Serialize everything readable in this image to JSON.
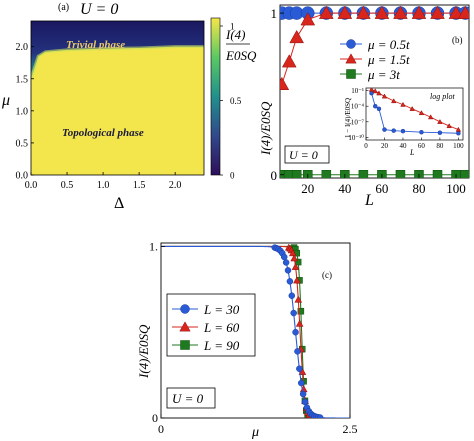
{
  "figure": {
    "panel_a": {
      "panel_label": "(a)",
      "title": "U = 0",
      "xlabel": "Δ",
      "ylabel": "μ",
      "x_ticks": [
        "0.0",
        "0.5",
        "1.0",
        "1.5",
        "2.0"
      ],
      "y_ticks": [
        "0.0",
        "0.5",
        "1.0",
        "1.5",
        "2.0"
      ],
      "colorbar_label_num": "I(4)",
      "colorbar_label_den": "E0SQ",
      "colorbar_ticks": [
        "0",
        "0.5",
        "1"
      ],
      "annotation_top": "Trivial phase",
      "annotation_bottom": "Topological phase"
    },
    "panel_b": {
      "panel_label": "(b)",
      "box_label": "U = 0",
      "xlabel": "L",
      "ylabel": "I(4)/E0SQ",
      "x_ticks": [
        "20",
        "40",
        "60",
        "80",
        "100"
      ],
      "y_ticks": [
        "0",
        "1"
      ],
      "legend": [
        "μ = 0.5t",
        "μ = 1.5t",
        "μ = 3t"
      ],
      "inset_label": "log plot",
      "inset_ylabel": "1 − I(4)/E0SQ",
      "inset_x_ticks": [
        "0",
        "20",
        "40",
        "60",
        "80",
        "100"
      ],
      "inset_y_ticks": [
        "10⁻¹",
        "10⁻⁴",
        "10⁻⁷",
        "10⁻¹⁰"
      ],
      "inset_xlabel": "L"
    },
    "panel_c": {
      "panel_label": "(c)",
      "box_label": "U = 0",
      "xlabel": "μ",
      "ylabel": "I(4)/E0SQ",
      "x_ticks": [
        "0",
        "2.5"
      ],
      "y_ticks": [
        "0",
        "1."
      ],
      "legend": [
        "L = 30",
        "L = 60",
        "L = 90"
      ]
    },
    "colors": {
      "blue": "#2a5bd7",
      "red": "#d9261c",
      "green": "#1f7a1f",
      "viridis_dark": "#1e1a5e",
      "viridis_yellow": "#f6e64a"
    }
  },
  "chart_data": [
    {
      "type": "heatmap",
      "title": "U = 0",
      "xlabel": "Δ",
      "ylabel": "μ",
      "xlim": [
        0,
        2.4
      ],
      "ylim": [
        0,
        2.4
      ],
      "zlim": [
        0,
        1
      ],
      "boundary_mu_vs_delta": {
        "x": [
          0.0,
          0.1,
          0.2,
          0.5,
          1.0,
          1.5,
          2.0,
          2.4
        ],
        "y": [
          1.5,
          1.85,
          1.92,
          1.95,
          1.97,
          1.98,
          2.0,
          2.0
        ]
      },
      "regions": [
        {
          "name": "Trivial phase",
          "value": 0
        },
        {
          "name": "Topological phase",
          "value": 1
        }
      ]
    },
    {
      "type": "scatter",
      "xlabel": "L",
      "ylabel": "I(4)/E0SQ",
      "xlim": [
        5,
        107
      ],
      "ylim": [
        -0.02,
        1.05
      ],
      "series": [
        {
          "name": "μ = 0.5t",
          "x": [
            6,
            10,
            14,
            20,
            30,
            40,
            50,
            60,
            70,
            80,
            90,
            100,
            105
          ],
          "y": [
            1,
            1,
            1,
            1,
            1,
            1,
            1,
            1,
            1,
            1,
            1,
            1,
            1
          ]
        },
        {
          "name": "μ = 1.5t",
          "x": [
            6,
            10,
            14,
            20,
            30,
            40,
            50,
            60,
            70,
            80,
            90,
            100,
            105
          ],
          "y": [
            0.56,
            0.7,
            0.85,
            0.96,
            1,
            1,
            1,
            1,
            1,
            1,
            1,
            1,
            1
          ]
        },
        {
          "name": "μ = 3t",
          "x": [
            6,
            10,
            14,
            20,
            30,
            40,
            50,
            60,
            70,
            80,
            90,
            100,
            105
          ],
          "y": [
            0,
            0,
            0,
            0,
            0,
            0,
            0,
            0,
            0,
            0,
            0,
            0,
            0
          ]
        }
      ]
    },
    {
      "type": "scatter",
      "title": "log plot",
      "xlabel": "L",
      "ylabel": "1 − I(4)/E0SQ",
      "log_y": true,
      "xlim": [
        0,
        105
      ],
      "ylim_log10": [
        -10.5,
        -0.5
      ],
      "series": [
        {
          "name": "μ = 0.5t",
          "x": [
            6,
            10,
            14,
            20,
            30,
            40,
            60,
            80,
            100
          ],
          "y_log10": [
            -1.5,
            -4.0,
            -4.5,
            -8.5,
            -8.7,
            -8.8,
            -9.0,
            -9.1,
            -9.2
          ]
        },
        {
          "name": "μ = 1.5t",
          "x": [
            6,
            10,
            14,
            20,
            30,
            40,
            50,
            60,
            70,
            80,
            90,
            100
          ],
          "y_log10": [
            -0.8,
            -1.1,
            -1.5,
            -2.1,
            -3.0,
            -3.7,
            -4.5,
            -5.3,
            -6.1,
            -7.0,
            -7.8,
            -8.5
          ]
        }
      ]
    },
    {
      "type": "line",
      "xlabel": "μ",
      "ylabel": "I(4)/E0SQ",
      "xlim": [
        0,
        2.5
      ],
      "ylim": [
        0,
        1.02
      ],
      "series": [
        {
          "name": "L = 30",
          "center": 1.78,
          "width": 0.055
        },
        {
          "name": "L = 60",
          "center": 1.84,
          "width": 0.03
        },
        {
          "name": "L = 90",
          "center": 1.86,
          "width": 0.02
        }
      ]
    }
  ]
}
